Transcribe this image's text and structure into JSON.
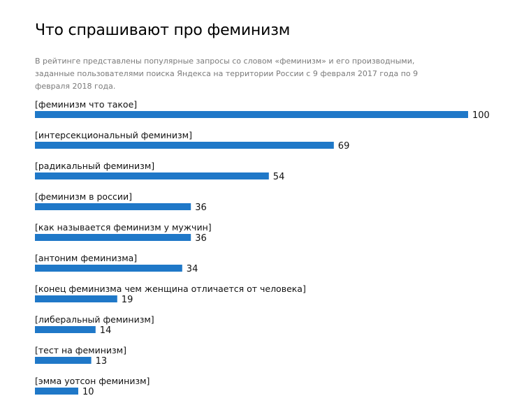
{
  "title": "Что спрашивают про феминизм",
  "subtitle": "В рейтинге представлены популярные запросы со словом «феминизм» и его производными, заданные пользователями поиска Яндекса на территории России с 9 февраля 2017 года по 9 февраля 2018 года.",
  "chart_data": {
    "type": "bar",
    "orientation": "horizontal",
    "title": "Что спрашивают про феминизм",
    "subtitle": "В рейтинге представлены популярные запросы со словом «феминизм» и его производными, заданные пользователями поиска Яндекса на территории России с 9 февраля 2017 года по 9 февраля 2018 года.",
    "categories": [
      "[феминизм что такое]",
      "[интерсекциональный феминизм]",
      "[радикальный феминизм]",
      "[феминизм в россии]",
      "[как называется феминизм у мужчин]",
      "[антоним феминизма]",
      "[конец феминизма чем женщина отличается от человека]",
      "[либеральный феминизм]",
      "[тест на феминизм]",
      "[эмма уотсон феминизм]"
    ],
    "values": [
      100,
      69,
      54,
      36,
      36,
      34,
      19,
      14,
      13,
      10
    ],
    "xlim": [
      0,
      100
    ],
    "bar_color": "#1f78c8",
    "grid": false,
    "legend": "none"
  }
}
